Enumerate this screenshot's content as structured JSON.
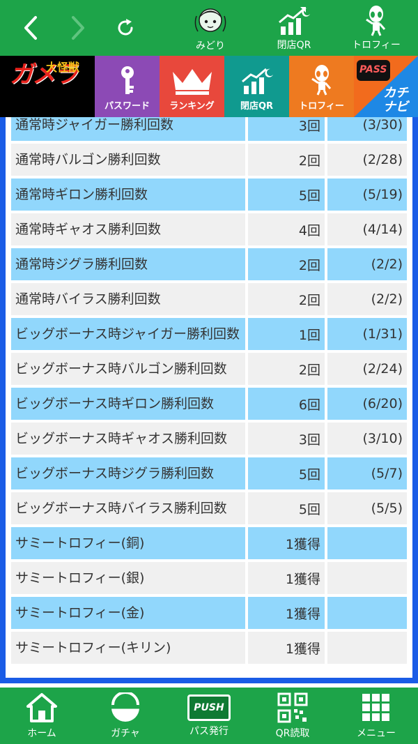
{
  "topbar": {
    "back_icon": "chevron-left-icon",
    "forward_icon": "chevron-right-icon",
    "reload_icon": "reload-icon",
    "midori_label": "みどり",
    "closing_qr_label": "閉店QR",
    "trophy_label": "トロフィー"
  },
  "categories": {
    "logo_text": "ガメラ",
    "logo_sub": "大怪獣",
    "password": "パスワード",
    "ranking": "ランキング",
    "closing_qr": "閉店QR",
    "trophy": "トロフィー",
    "pass_badge": "PASS",
    "kachi_navi": "カチナビ"
  },
  "rows": [
    {
      "name": "通常時ジャイガー勝利回数",
      "count": "3回",
      "ratio": "(3/30)"
    },
    {
      "name": "通常時バルゴン勝利回数",
      "count": "2回",
      "ratio": "(2/28)"
    },
    {
      "name": "通常時ギロン勝利回数",
      "count": "5回",
      "ratio": "(5/19)"
    },
    {
      "name": "通常時ギャオス勝利回数",
      "count": "4回",
      "ratio": "(4/14)"
    },
    {
      "name": "通常時ジグラ勝利回数",
      "count": "2回",
      "ratio": "(2/2)"
    },
    {
      "name": "通常時バイラス勝利回数",
      "count": "2回",
      "ratio": "(2/2)"
    },
    {
      "name": "ビッグボーナス時ジャイガー勝利回数",
      "count": "1回",
      "ratio": "(1/31)"
    },
    {
      "name": "ビッグボーナス時バルゴン勝利回数",
      "count": "2回",
      "ratio": "(2/24)"
    },
    {
      "name": "ビッグボーナス時ギロン勝利回数",
      "count": "6回",
      "ratio": "(6/20)"
    },
    {
      "name": "ビッグボーナス時ギャオス勝利回数",
      "count": "3回",
      "ratio": "(3/10)"
    },
    {
      "name": "ビッグボーナス時ジグラ勝利回数",
      "count": "5回",
      "ratio": "(5/7)"
    },
    {
      "name": "ビッグボーナス時バイラス勝利回数",
      "count": "5回",
      "ratio": "(5/5)"
    },
    {
      "name": "サミートロフィー(銅)",
      "count": "1獲得",
      "ratio": ""
    },
    {
      "name": "サミートロフィー(銀)",
      "count": "1獲得",
      "ratio": ""
    },
    {
      "name": "サミートロフィー(金)",
      "count": "1獲得",
      "ratio": ""
    },
    {
      "name": "サミートロフィー(キリン)",
      "count": "1獲得",
      "ratio": ""
    }
  ],
  "bottomnav": {
    "home": "ホーム",
    "gacha": "ガチャ",
    "push_badge": "PUSH",
    "pass_issue": "パス発行",
    "qr_read": "QR読取",
    "menu": "メニュー"
  },
  "colors": {
    "green": "#1da449",
    "blue_row": "#91d7fc",
    "gray_row": "#f0f0f0",
    "frame_blue": "#1a5ce6",
    "password_purple": "#8c4ab5",
    "ranking_red": "#e8483c",
    "closing_teal": "#109a8f",
    "trophy_orange": "#ee7a20",
    "kachi_orange": "#f26b1d"
  }
}
